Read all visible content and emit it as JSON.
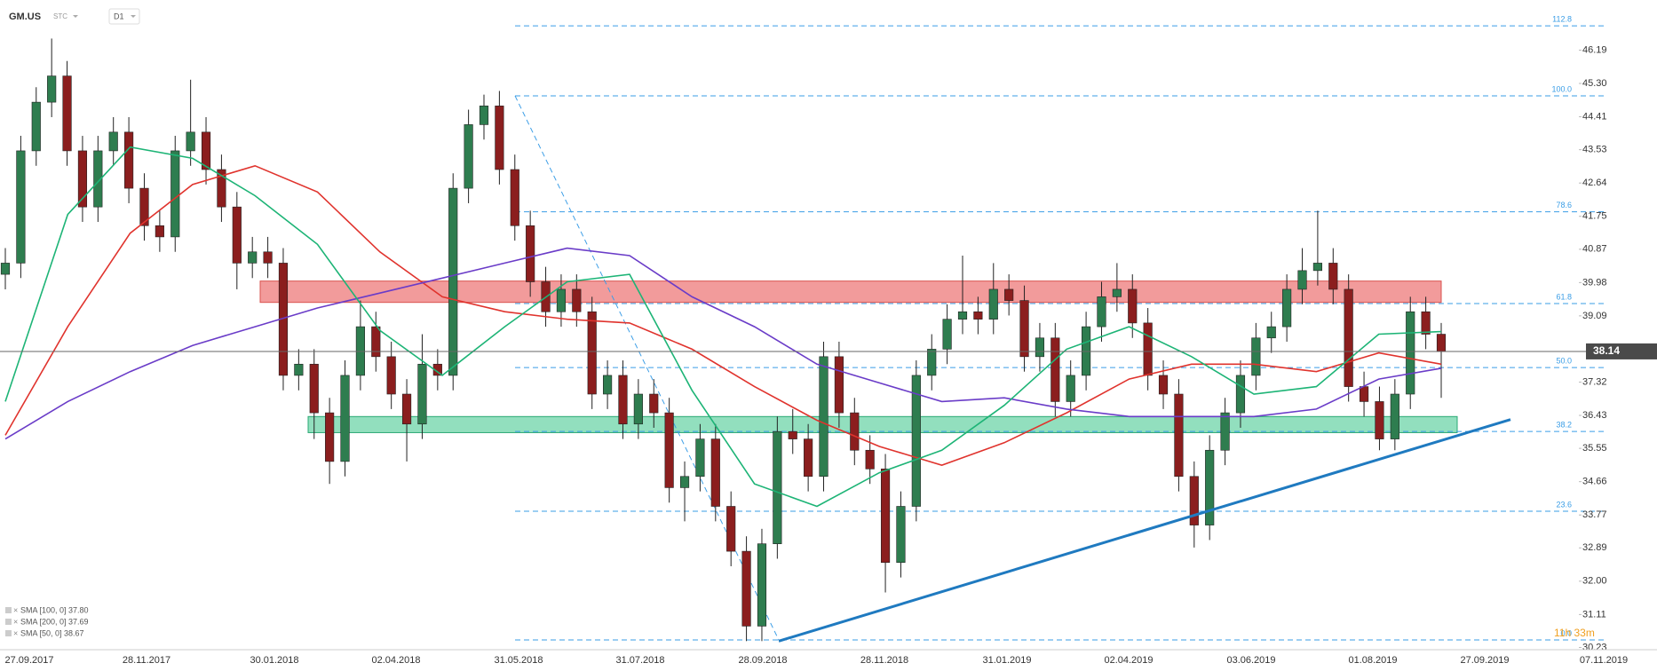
{
  "header": {
    "symbol": "GM.US",
    "market": "STC",
    "interval": "D1"
  },
  "chart_data": {
    "type": "candlestick",
    "up_color": "#2e7d4f",
    "down_color": "#8b1e1e",
    "open": [
      40.2,
      40.5,
      43.5,
      44.8,
      45.5,
      43.5,
      42.0,
      43.5,
      44.0,
      42.5,
      41.5,
      41.2,
      43.5,
      44.0,
      43.0,
      42.0,
      40.5,
      40.8,
      40.5,
      37.5,
      37.8,
      36.5,
      35.2,
      37.5,
      38.8,
      38.0,
      37.0,
      36.2,
      37.8,
      37.5,
      42.5,
      44.2,
      44.7,
      43.0,
      41.5,
      40.0,
      39.2,
      39.8,
      39.2,
      37.0,
      37.5,
      36.2,
      37.0,
      36.5,
      34.5,
      34.8,
      35.8,
      34.0,
      32.8,
      30.8,
      33.0,
      36.0,
      35.8,
      34.8,
      38.0,
      36.5,
      35.5,
      35.0,
      32.5,
      34.0,
      37.5,
      38.2,
      39.0,
      39.2,
      39.0,
      39.8,
      39.5,
      38.0,
      38.5,
      36.8,
      37.5,
      38.8,
      39.6,
      39.8,
      38.9,
      37.5,
      37.0,
      34.8,
      33.5,
      35.5,
      36.5,
      37.5,
      38.5,
      38.8,
      39.8,
      40.3,
      40.5,
      39.8,
      37.2,
      36.8,
      35.8,
      37.0,
      39.2,
      38.6
    ],
    "high": [
      40.9,
      43.9,
      45.2,
      46.5,
      45.9,
      43.9,
      43.9,
      44.4,
      44.4,
      42.9,
      41.9,
      43.9,
      45.4,
      44.4,
      43.4,
      42.4,
      41.2,
      41.2,
      40.9,
      38.2,
      38.2,
      36.9,
      37.9,
      39.5,
      39.2,
      38.4,
      37.4,
      38.6,
      38.2,
      42.9,
      44.6,
      45.0,
      45.1,
      43.4,
      41.9,
      40.4,
      40.2,
      40.2,
      39.6,
      37.9,
      37.9,
      37.4,
      37.4,
      36.9,
      35.2,
      36.2,
      36.2,
      34.4,
      33.2,
      33.4,
      36.4,
      36.6,
      36.2,
      38.4,
      38.4,
      36.9,
      35.9,
      35.4,
      34.4,
      37.9,
      38.6,
      39.4,
      40.7,
      39.6,
      40.5,
      40.2,
      39.9,
      38.9,
      38.9,
      37.9,
      39.2,
      40.0,
      40.5,
      40.2,
      39.3,
      37.9,
      37.4,
      35.2,
      35.9,
      36.9,
      37.9,
      38.9,
      39.2,
      40.2,
      40.9,
      41.9,
      40.9,
      40.2,
      37.6,
      37.2,
      37.4,
      39.6,
      39.6,
      38.9
    ],
    "low": [
      39.8,
      40.1,
      43.1,
      44.4,
      43.1,
      41.6,
      41.6,
      43.1,
      42.1,
      41.1,
      40.8,
      40.8,
      43.1,
      42.6,
      41.6,
      39.8,
      40.1,
      40.1,
      37.1,
      37.1,
      35.8,
      34.6,
      34.8,
      37.1,
      37.6,
      36.6,
      35.2,
      35.8,
      37.1,
      37.1,
      42.1,
      43.8,
      42.6,
      41.1,
      39.6,
      38.8,
      38.8,
      38.8,
      36.6,
      36.6,
      35.8,
      35.8,
      36.1,
      34.1,
      33.6,
      34.4,
      33.6,
      32.4,
      30.4,
      30.4,
      32.6,
      35.4,
      34.4,
      34.4,
      36.1,
      35.1,
      34.6,
      31.7,
      32.1,
      33.6,
      37.1,
      37.8,
      38.6,
      38.6,
      38.6,
      39.1,
      37.6,
      37.6,
      36.4,
      36.4,
      37.1,
      38.4,
      39.2,
      38.5,
      37.1,
      36.6,
      34.4,
      32.9,
      33.1,
      35.1,
      36.1,
      37.1,
      38.1,
      38.4,
      39.4,
      39.9,
      39.4,
      36.8,
      36.4,
      35.5,
      35.5,
      36.6,
      38.2,
      36.9
    ],
    "close": [
      40.5,
      43.5,
      44.8,
      45.5,
      43.5,
      42.0,
      43.5,
      44.0,
      42.5,
      41.5,
      41.2,
      43.5,
      44.0,
      43.0,
      42.0,
      40.5,
      40.8,
      40.5,
      37.5,
      37.8,
      36.5,
      35.2,
      37.5,
      38.8,
      38.0,
      37.0,
      36.2,
      37.8,
      37.5,
      42.5,
      44.2,
      44.7,
      43.0,
      41.5,
      40.0,
      39.2,
      39.8,
      39.2,
      37.0,
      37.5,
      36.2,
      37.0,
      36.5,
      34.5,
      34.8,
      35.8,
      34.0,
      32.8,
      30.8,
      33.0,
      36.0,
      35.8,
      34.8,
      38.0,
      36.5,
      35.5,
      35.0,
      32.5,
      34.0,
      37.5,
      38.2,
      39.0,
      39.2,
      39.0,
      39.8,
      39.5,
      38.0,
      38.5,
      36.8,
      37.5,
      38.8,
      39.6,
      39.8,
      38.9,
      37.5,
      37.0,
      34.8,
      33.5,
      35.5,
      36.5,
      37.5,
      38.5,
      38.8,
      39.8,
      40.3,
      40.5,
      39.8,
      37.2,
      36.8,
      35.8,
      37.0,
      39.2,
      38.6,
      38.14
    ],
    "series": [
      {
        "name": "SMA [100, 0] 37.80",
        "color": "#e0332d",
        "values": [
          35.9,
          38.8,
          41.3,
          42.6,
          43.1,
          42.4,
          40.8,
          39.6,
          39.2,
          39.0,
          38.9,
          38.2,
          37.2,
          36.3,
          35.6,
          35.1,
          35.7,
          36.5,
          37.4,
          37.8,
          37.8,
          37.6,
          38.1,
          37.8
        ]
      },
      {
        "name": "SMA [200, 0] 37.69",
        "color": "#6a3cc8",
        "values": [
          35.8,
          36.8,
          37.6,
          38.3,
          38.8,
          39.3,
          39.7,
          40.1,
          40.5,
          40.9,
          40.7,
          39.6,
          38.8,
          37.8,
          37.3,
          36.8,
          36.9,
          36.6,
          36.4,
          36.4,
          36.4,
          36.6,
          37.4,
          37.69
        ]
      },
      {
        "name": "SMA [50, 0] 38.67",
        "color": "#1db476",
        "values": [
          36.8,
          41.8,
          43.6,
          43.3,
          42.3,
          41.0,
          38.7,
          37.5,
          38.8,
          40.0,
          40.2,
          37.1,
          34.6,
          34.0,
          34.9,
          35.5,
          36.7,
          38.2,
          38.8,
          38.0,
          37.0,
          37.2,
          38.6,
          38.67
        ]
      }
    ],
    "fibonacci": {
      "color": "#3a9de6",
      "labels": [
        "112.8",
        "100.0",
        "78.6",
        "61.8",
        "50.0",
        "38.2",
        "23.6",
        "0.0"
      ],
      "values": [
        46.84,
        44.97,
        41.87,
        39.42,
        37.71,
        36.0,
        33.87,
        30.43
      ]
    },
    "zones": [
      {
        "color": "#f08a8a",
        "border": "#d9534f",
        "values": [
          40.02,
          39.45
        ]
      },
      {
        "color": "#7fd9b3",
        "border": "#2aa874",
        "values": [
          36.4,
          35.97
        ]
      }
    ],
    "trendline": {
      "color": "#1f7ac0",
      "values": [
        30.4,
        36.32
      ]
    },
    "last_price": 38.14,
    "countdown": "11h 33m",
    "ylim": [
      30.17,
      47.53
    ],
    "yticks": [
      46.19,
      {
        "value": 45.3,
        "label": "45.30"
      },
      44.41,
      43.53,
      42.64,
      41.75,
      40.87,
      39.98,
      39.09,
      37.32,
      36.43,
      35.55,
      34.66,
      33.77,
      32.89,
      {
        "value": 32,
        "label": "32.00"
      },
      31.11,
      30.23
    ],
    "xticks": [
      "27.09.2017",
      "28.11.2017",
      "30.01.2018",
      "02.04.2018",
      "31.05.2018",
      "31.07.2018",
      "28.09.2018",
      "28.11.2018",
      "31.01.2019",
      "02.04.2019",
      "03.06.2019",
      "01.08.2019",
      "27.09.2019",
      "07.11.2019"
    ]
  }
}
